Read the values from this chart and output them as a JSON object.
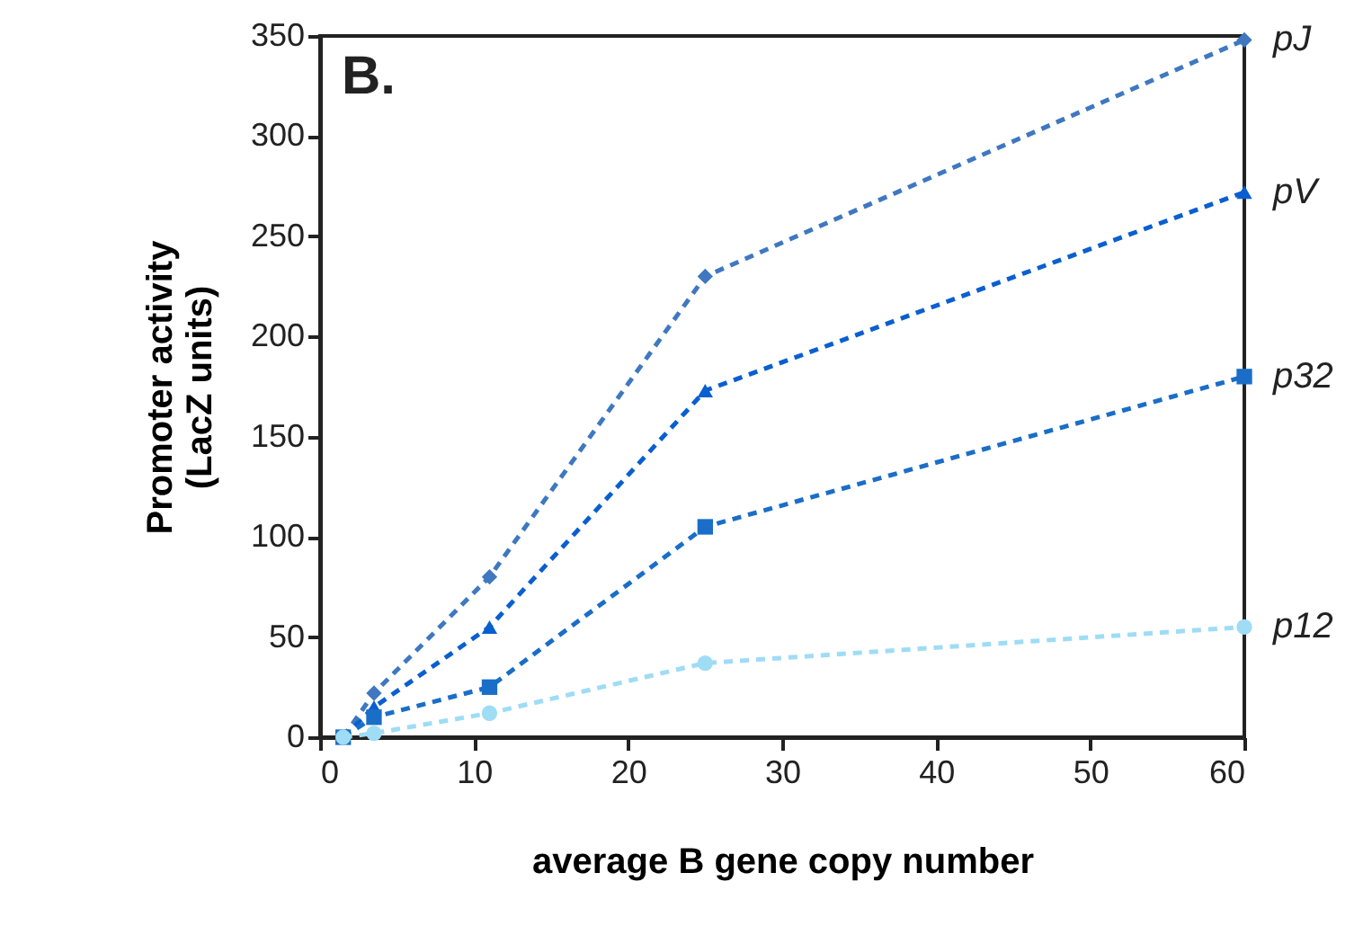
{
  "chart_data": {
    "type": "line",
    "xlabel": "average B gene copy number",
    "ylabel": "Promoter activity\n(LacZ units)",
    "annotations": [
      "B."
    ],
    "xlim": [
      0,
      60
    ],
    "xticks": [
      0,
      10,
      20,
      30,
      40,
      50,
      60
    ],
    "ylim": [
      0,
      350
    ],
    "yticks": [
      0,
      50,
      100,
      150,
      200,
      250,
      300,
      350
    ],
    "grid": false,
    "line_style": "dashed",
    "x": [
      1.5,
      3.5,
      11,
      25,
      60
    ],
    "series": [
      {
        "name": "pJ",
        "color": "#3f78c0",
        "marker": "diamond",
        "values": [
          0,
          22,
          80,
          230,
          348
        ]
      },
      {
        "name": "pV",
        "color": "#0a5fd0",
        "marker": "triangle",
        "values": [
          0,
          15,
          55,
          173,
          272
        ]
      },
      {
        "name": "p32",
        "color": "#1a6ec8",
        "marker": "square",
        "values": [
          0,
          10,
          25,
          105,
          180
        ]
      },
      {
        "name": "p12",
        "color": "#9fdcf5",
        "marker": "circle",
        "values": [
          0,
          2,
          12,
          37,
          55
        ]
      }
    ]
  }
}
